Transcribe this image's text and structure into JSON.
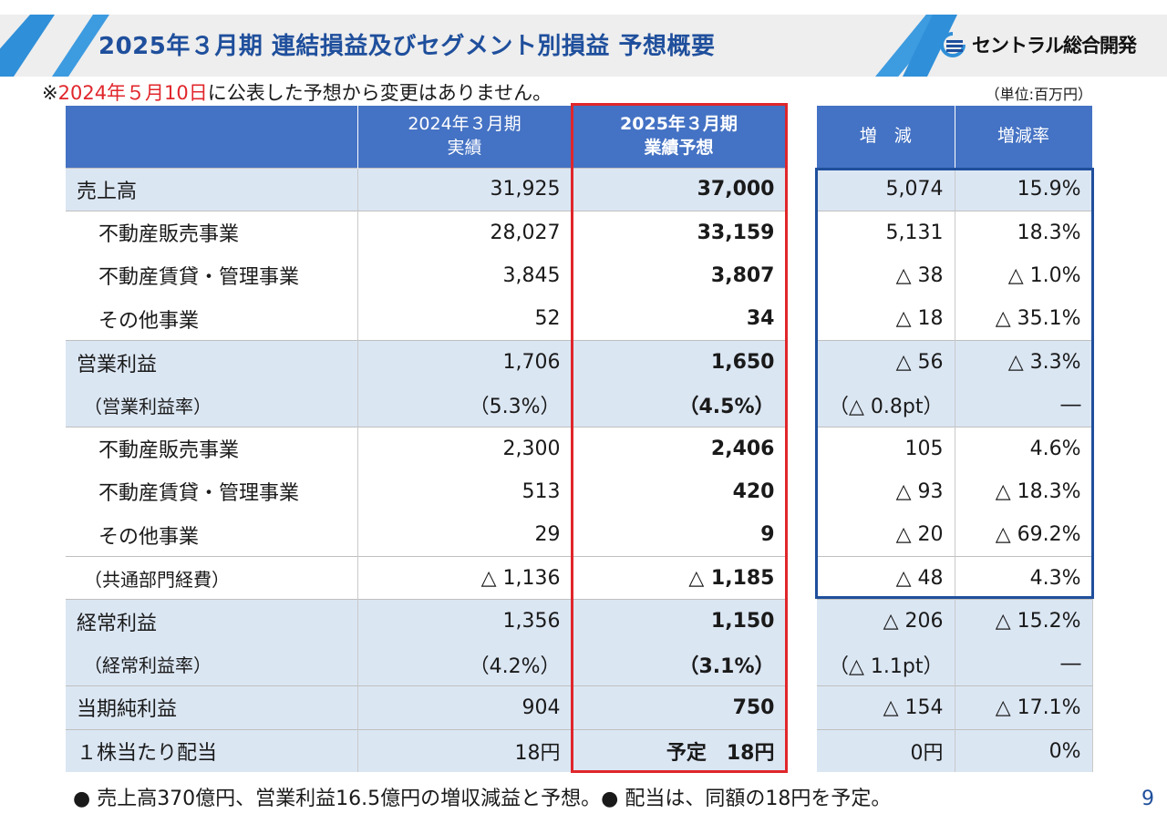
{
  "header": {
    "title": "2025年３月期  連結損益及びセグメント別損益  予想概要",
    "logo_text": "セントラル総合開発",
    "colors": {
      "title": "#1f4f9c",
      "accent": "#2f8fd8",
      "red": "#e0262b",
      "table_header": "#4472c4",
      "row_shade": "#dbe6f3"
    }
  },
  "note": {
    "prefix": "※",
    "date": "2024年５月10日",
    "suffix": "に公表した予想から変更はありません。"
  },
  "unit": "（単位:百万円）",
  "table": {
    "headers": {
      "label": "",
      "prev_line1": "2024年３月期",
      "prev_line2": "実績",
      "fcst_line1": "2025年３月期",
      "fcst_line2": "業績予想",
      "diff": "増　減",
      "rate": "増減率"
    },
    "rows": [
      {
        "label": "売上高",
        "prev": "31,925",
        "fcst": "37,000",
        "diff": "5,074",
        "rate": "15.9%"
      },
      {
        "label": "不動産販売事業",
        "prev": "28,027",
        "fcst": "33,159",
        "diff": "5,131",
        "rate": "18.3%"
      },
      {
        "label": "不動産賃貸・管理事業",
        "prev": "3,845",
        "fcst": "3,807",
        "diff": "△ 38",
        "rate": "△ 1.0%"
      },
      {
        "label": "その他事業",
        "prev": "52",
        "fcst": "34",
        "diff": "△ 18",
        "rate": "△ 35.1%"
      },
      {
        "label": "営業利益",
        "prev": "1,706",
        "fcst": "1,650",
        "diff": "△ 56",
        "rate": "△ 3.3%"
      },
      {
        "label": "（営業利益率）",
        "prev": "（5.3%）",
        "fcst": "（4.5%）",
        "diff": "（△ 0.8pt）",
        "rate": "―"
      },
      {
        "label": "不動産販売事業",
        "prev": "2,300",
        "fcst": "2,406",
        "diff": "105",
        "rate": "4.6%"
      },
      {
        "label": "不動産賃貸・管理事業",
        "prev": "513",
        "fcst": "420",
        "diff": "△ 93",
        "rate": "△ 18.3%"
      },
      {
        "label": "その他事業",
        "prev": "29",
        "fcst": "9",
        "diff": "△ 20",
        "rate": "△ 69.2%"
      },
      {
        "label": "（共通部門経費）",
        "prev": "△ 1,136",
        "fcst": "△ 1,185",
        "diff": "△ 48",
        "rate": "4.3%"
      },
      {
        "label": "経常利益",
        "prev": "1,356",
        "fcst": "1,150",
        "diff": "△ 206",
        "rate": "△ 15.2%"
      },
      {
        "label": "（経常利益率）",
        "prev": "（4.2%）",
        "fcst": "（3.1%）",
        "diff": "（△ 1.1pt）",
        "rate": "―"
      },
      {
        "label": "当期純利益",
        "prev": "904",
        "fcst": "750",
        "diff": "△ 154",
        "rate": "△ 17.1%"
      },
      {
        "label": "１株当たり配当",
        "prev": "18円",
        "fcst": "予定　18円",
        "diff": "0円",
        "rate": "0%"
      }
    ]
  },
  "footer": "● 売上高370億円、営業利益16.5億円の増収減益と予想。● 配当は、同額の18円を予定。",
  "page_number": "9"
}
